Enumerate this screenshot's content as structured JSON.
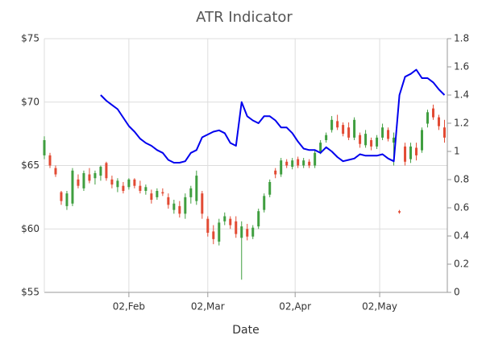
{
  "chart_data": {
    "type": "candlestick",
    "title": "ATR Indicator",
    "x_label": "Date",
    "x": [
      "03,Jan",
      "05,Jan",
      "07,Jan",
      "09,Jan",
      "11,Jan",
      "13,Jan",
      "15,Jan",
      "17,Jan",
      "19,Jan",
      "21,Jan",
      "23,Jan",
      "25,Jan",
      "27,Jan",
      "29,Jan",
      "31,Jan",
      "02,Feb",
      "04,Feb",
      "06,Feb",
      "08,Feb",
      "10,Feb",
      "12,Feb",
      "14,Feb",
      "16,Feb",
      "18,Feb",
      "20,Feb",
      "22,Feb",
      "24,Feb",
      "26,Feb",
      "28,Feb",
      "02,Mar",
      "04,Mar",
      "06,Mar",
      "08,Mar",
      "10,Mar",
      "12,Mar",
      "14,Mar",
      "16,Mar",
      "18,Mar",
      "20,Mar",
      "22,Mar",
      "24,Mar",
      "26,Mar",
      "28,Mar",
      "30,Mar",
      "01,Apr",
      "03,Apr",
      "05,Apr",
      "07,Apr",
      "09,Apr",
      "11,Apr",
      "13,Apr",
      "15,Apr",
      "17,Apr",
      "19,Apr",
      "21,Apr",
      "23,Apr",
      "25,Apr",
      "27,Apr",
      "29,Apr",
      "01,May",
      "03,May",
      "05,May",
      "07,May",
      "09,May",
      "11,May",
      "13,May",
      "15,May",
      "17,May",
      "19,May",
      "21,May",
      "23,May",
      "25,May"
    ],
    "xlim": [
      "03,Jan",
      "26,May"
    ],
    "xticks": [
      "02,Feb",
      "02,Mar",
      "02,Apr",
      "02,May"
    ],
    "ylim": [
      55,
      75
    ],
    "yticks": [
      {
        "value": 55,
        "label": "$55"
      },
      {
        "value": 60,
        "label": "$60"
      },
      {
        "value": 65,
        "label": "$65"
      },
      {
        "value": 70,
        "label": "$70"
      },
      {
        "value": 75,
        "label": "$75"
      }
    ],
    "y2lim": [
      0,
      1.8
    ],
    "y2ticks": [
      0,
      0.2,
      0.4,
      0.6,
      0.8,
      1,
      1.2,
      1.4,
      1.6,
      1.8
    ],
    "grid": true,
    "series": [
      {
        "type": "ohlc",
        "up_color": "#3f9e3f",
        "down_color": "#e24a33",
        "open": [
          65.8,
          65.8,
          64.8,
          62.9,
          61.8,
          62.0,
          63.9,
          63.2,
          64.3,
          64.0,
          64.2,
          65.2,
          63.9,
          63.3,
          63.4,
          63.3,
          63.9,
          63.4,
          63.0,
          62.8,
          62.5,
          62.9,
          62.5,
          61.5,
          61.8,
          61.2,
          62.5,
          62.2,
          62.8,
          60.8,
          59.8,
          59.0,
          60.6,
          60.8,
          60.6,
          59.3,
          60.0,
          59.4,
          60.2,
          61.5,
          62.7,
          64.6,
          64.3,
          65.3,
          64.9,
          65.5,
          65.0,
          65.3,
          65.0,
          66.1,
          67.0,
          67.8,
          68.5,
          68.2,
          68.0,
          67.2,
          67.4,
          66.6,
          67.0,
          66.5,
          67.2,
          67.8,
          66.8,
          61.4,
          66.5,
          65.5,
          66.4,
          66.2,
          68.3,
          69.5,
          68.8,
          68.0
        ],
        "high": [
          67.3,
          66.0,
          65.0,
          63.0,
          63.0,
          64.8,
          64.3,
          64.6,
          64.8,
          64.6,
          65.0,
          65.3,
          64.2,
          64.0,
          63.7,
          64.0,
          64.0,
          63.8,
          63.5,
          63.1,
          63.2,
          63.2,
          62.8,
          62.3,
          62.2,
          62.8,
          63.4,
          64.6,
          63.0,
          61.0,
          60.3,
          60.8,
          61.3,
          61.0,
          61.0,
          60.6,
          60.4,
          60.3,
          61.6,
          62.8,
          63.9,
          64.8,
          65.6,
          65.5,
          65.6,
          65.7,
          65.6,
          65.5,
          66.2,
          67.0,
          67.6,
          68.9,
          69.0,
          68.4,
          68.4,
          68.8,
          67.6,
          67.8,
          67.2,
          67.4,
          68.3,
          68.0,
          67.6,
          61.5,
          66.8,
          66.8,
          66.8,
          68.0,
          69.4,
          69.8,
          69.0,
          68.6
        ],
        "low": [
          65.5,
          64.8,
          64.1,
          61.9,
          61.5,
          61.8,
          63.2,
          63.0,
          63.6,
          63.5,
          63.8,
          63.8,
          63.2,
          62.9,
          62.8,
          63.1,
          63.2,
          62.8,
          62.7,
          62.0,
          62.3,
          62.6,
          61.6,
          61.2,
          60.9,
          60.8,
          62.0,
          61.9,
          60.8,
          59.4,
          58.8,
          58.7,
          60.3,
          60.0,
          59.3,
          56.0,
          59.1,
          59.2,
          60.0,
          61.3,
          62.5,
          64.0,
          64.1,
          64.8,
          64.7,
          64.8,
          64.8,
          64.8,
          64.8,
          65.9,
          66.8,
          67.6,
          67.8,
          67.3,
          67.0,
          67.0,
          66.4,
          66.4,
          66.2,
          66.3,
          67.0,
          66.9,
          65.0,
          61.2,
          65.0,
          65.2,
          65.4,
          66.0,
          68.0,
          68.6,
          67.8,
          66.8
        ],
        "close": [
          67.0,
          65.0,
          64.3,
          62.2,
          62.8,
          64.6,
          63.4,
          64.4,
          63.8,
          64.4,
          64.9,
          64.0,
          63.5,
          63.8,
          63.0,
          63.9,
          63.4,
          63.0,
          63.3,
          62.3,
          63.0,
          62.8,
          61.9,
          62.0,
          61.2,
          62.5,
          63.2,
          64.2,
          61.2,
          59.7,
          59.2,
          60.5,
          61.0,
          60.3,
          59.6,
          60.2,
          59.4,
          60.1,
          61.4,
          62.6,
          63.7,
          64.3,
          65.4,
          65.0,
          65.4,
          65.0,
          65.4,
          65.0,
          66.0,
          66.8,
          67.4,
          68.6,
          68.0,
          67.5,
          67.2,
          68.6,
          66.7,
          67.5,
          66.5,
          67.2,
          68.0,
          67.1,
          67.2,
          61.3,
          65.3,
          66.5,
          65.8,
          67.8,
          69.2,
          68.8,
          68.1,
          67.2
        ]
      },
      {
        "type": "line",
        "color": "#0000ee",
        "axis": "y2",
        "values": [
          null,
          null,
          null,
          null,
          null,
          null,
          null,
          null,
          null,
          null,
          1.4,
          1.36,
          1.33,
          1.3,
          1.24,
          1.18,
          1.14,
          1.09,
          1.06,
          1.04,
          1.01,
          0.99,
          0.94,
          0.92,
          0.92,
          0.93,
          0.99,
          1.01,
          1.1,
          1.12,
          1.14,
          1.15,
          1.13,
          1.06,
          1.04,
          1.35,
          1.25,
          1.22,
          1.2,
          1.25,
          1.25,
          1.22,
          1.17,
          1.17,
          1.13,
          1.07,
          1.02,
          1.01,
          1.01,
          0.99,
          1.03,
          1.0,
          0.96,
          0.93,
          0.94,
          0.95,
          0.98,
          0.97,
          0.97,
          0.97,
          0.98,
          0.95,
          0.93,
          1.4,
          1.53,
          1.55,
          1.58,
          1.52,
          1.52,
          1.49,
          1.44,
          1.4
        ]
      }
    ]
  }
}
